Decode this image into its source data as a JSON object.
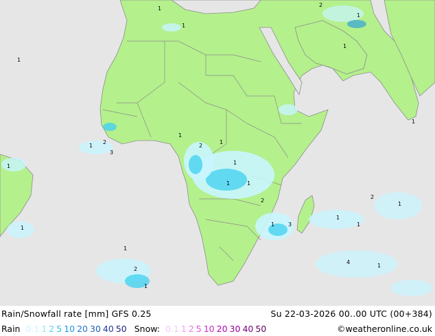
{
  "map": {
    "colors": {
      "sea": "#e6e6e6",
      "land": "#b4f08c",
      "border": "#8c8c8c",
      "rain_light": "#c8f5ff",
      "rain_medium": "#46d2f0",
      "rain_heavy": "#1e96e6"
    },
    "cell_numbers": [
      "1",
      "1",
      "2",
      "1",
      "3",
      "1",
      "2",
      "1",
      "1",
      "1",
      "1",
      "2",
      "1",
      "3",
      "1",
      "1",
      "2",
      "1",
      "4",
      "1",
      "1",
      "2",
      "1",
      "1",
      "1",
      "1",
      "2",
      "1",
      "1",
      "1"
    ]
  },
  "footer": {
    "title": "Rain/Snowfall rate [mm] GFS 0.25",
    "datetime": "Su 22-03-2026 00..00 UTC (00+384)",
    "rain_label": "Rain",
    "snow_label": "Snow:",
    "credit": "©weatheronline.co.uk",
    "rain_scale": [
      {
        "v": "0.1",
        "c": "#c8f5ff"
      },
      {
        "v": "1",
        "c": "#96e6f5"
      },
      {
        "v": "2",
        "c": "#64d2f0"
      },
      {
        "v": "5",
        "c": "#32bee6"
      },
      {
        "v": "10",
        "c": "#1e96e6"
      },
      {
        "v": "20",
        "c": "#1e78d2"
      },
      {
        "v": "30",
        "c": "#1e5ab4"
      },
      {
        "v": "40",
        "c": "#1e3c96"
      },
      {
        "v": "50",
        "c": "#1e1e78"
      }
    ],
    "snow_scale": [
      {
        "v": "0.1",
        "c": "#f5c8f5"
      },
      {
        "v": "1",
        "c": "#f0a0f0"
      },
      {
        "v": "2",
        "c": "#e678e6"
      },
      {
        "v": "5",
        "c": "#dc50dc"
      },
      {
        "v": "10",
        "c": "#c828c8"
      },
      {
        "v": "20",
        "c": "#b400b4"
      },
      {
        "v": "30",
        "c": "#960096"
      },
      {
        "v": "40",
        "c": "#780078"
      },
      {
        "v": "50",
        "c": "#5a005a"
      }
    ]
  }
}
